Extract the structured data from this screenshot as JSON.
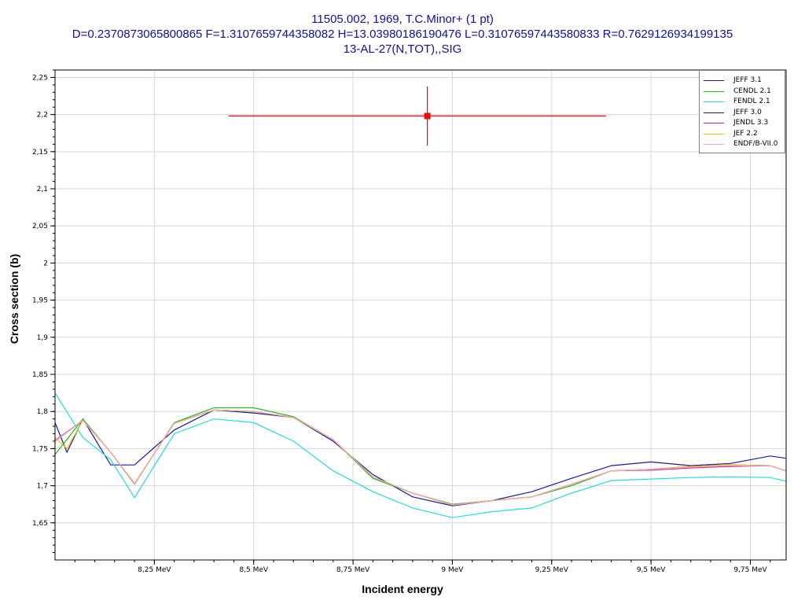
{
  "header": {
    "line1": "11505.002, 1969, T.C.Minor+ (1 pt)",
    "line2": "D=0.2370873065800865 F=1.3107659744358082 H=13.03980186190476 L=0.31076597443580833 R=0.7629126934199135",
    "line3": "13-AL-27(N,TOT),,SIG"
  },
  "chart_data": {
    "type": "line",
    "title": "13-AL-27(N,TOT),,SIG",
    "xlabel": "Incident energy",
    "ylabel": "Cross section (b)",
    "xlim": [
      8.0,
      9.84
    ],
    "ylim": [
      1.6,
      2.26
    ],
    "x_ticks": [
      8.25,
      8.5,
      8.75,
      9.0,
      9.25,
      9.5,
      9.75
    ],
    "x_tick_labels": [
      "8,25 MeV",
      "8,5 MeV",
      "8,75 MeV",
      "9 MeV",
      "9,25 MeV",
      "9,5 MeV",
      "9,75 MeV"
    ],
    "y_ticks": [
      1.65,
      1.7,
      1.75,
      1.8,
      1.85,
      1.9,
      1.95,
      2.0,
      2.05,
      2.1,
      2.15,
      2.2,
      2.25
    ],
    "y_tick_labels": [
      "1,65",
      "1,7",
      "1,75",
      "1,8",
      "1,85",
      "1,9",
      "1,95",
      "2",
      "2,05",
      "2,1",
      "2,15",
      "2,2",
      "2,25"
    ],
    "grid": true,
    "legend_position": "top-right",
    "experimental_point": {
      "x": 8.937,
      "y": 2.198,
      "x_err_low": 0.5,
      "x_err_high": 0.45,
      "y_err": 0.04,
      "color": "#ff0000"
    },
    "series": [
      {
        "name": "JEFF 3.1",
        "color": "#1a1aa0",
        "x": [
          8.0,
          8.03,
          8.07,
          8.14,
          8.2,
          8.3,
          8.4,
          8.5,
          8.6,
          8.7,
          8.8,
          8.9,
          9.0,
          9.1,
          9.2,
          9.3,
          9.4,
          9.5,
          9.6,
          9.7,
          9.8,
          9.84
        ],
        "y": [
          1.785,
          1.745,
          1.79,
          1.728,
          1.728,
          1.775,
          1.802,
          1.798,
          1.792,
          1.76,
          1.715,
          1.685,
          1.673,
          1.68,
          1.692,
          1.71,
          1.727,
          1.732,
          1.727,
          1.73,
          1.74,
          1.737
        ]
      },
      {
        "name": "CENDL 2.1",
        "color": "#22bb22",
        "x": [
          8.0,
          8.07,
          8.14,
          8.2,
          8.3,
          8.4,
          8.5,
          8.6,
          8.7,
          8.8,
          8.9,
          9.0,
          9.1,
          9.2,
          9.3,
          9.4,
          9.5,
          9.6,
          9.7,
          9.8,
          9.84
        ],
        "y": [
          1.742,
          1.79,
          1.745,
          1.702,
          1.785,
          1.805,
          1.805,
          1.793,
          1.762,
          1.71,
          1.69,
          1.675,
          1.68,
          1.685,
          1.7,
          1.72,
          1.722,
          1.725,
          1.728,
          1.727,
          1.72
        ]
      },
      {
        "name": "FENDL 2.1",
        "color": "#22dddd",
        "x": [
          8.0,
          8.07,
          8.14,
          8.2,
          8.3,
          8.4,
          8.5,
          8.6,
          8.7,
          8.8,
          8.9,
          9.0,
          9.1,
          9.2,
          9.3,
          9.4,
          9.5,
          9.6,
          9.7,
          9.8,
          9.84
        ],
        "y": [
          1.825,
          1.765,
          1.735,
          1.684,
          1.77,
          1.79,
          1.785,
          1.76,
          1.72,
          1.692,
          1.67,
          1.657,
          1.665,
          1.67,
          1.69,
          1.707,
          1.709,
          1.711,
          1.712,
          1.711,
          1.706
        ]
      },
      {
        "name": "JEFF 3.0",
        "color": "#202030",
        "x": [
          8.0,
          8.07,
          8.14,
          8.2,
          8.3,
          8.4,
          8.5,
          8.6,
          8.7,
          8.8,
          8.9,
          9.0,
          9.1,
          9.2,
          9.3,
          9.4,
          9.5,
          9.6,
          9.7,
          9.8,
          9.84
        ],
        "y": [
          1.76,
          1.788,
          1.745,
          1.703,
          1.784,
          1.802,
          1.8,
          1.792,
          1.762,
          1.712,
          1.69,
          1.674,
          1.68,
          1.685,
          1.702,
          1.72,
          1.722,
          1.726,
          1.728,
          1.727,
          1.72
        ]
      },
      {
        "name": "JENDL 3.3",
        "color": "#bb22bb",
        "x": [
          8.0,
          8.07,
          8.14,
          8.2,
          8.3,
          8.4,
          8.5,
          8.6,
          8.7,
          8.8,
          8.9,
          9.0,
          9.1,
          9.2,
          9.3,
          9.4,
          9.5,
          9.6,
          9.7,
          9.8,
          9.84
        ],
        "y": [
          1.761,
          1.788,
          1.745,
          1.703,
          1.784,
          1.802,
          1.8,
          1.792,
          1.762,
          1.712,
          1.69,
          1.674,
          1.68,
          1.685,
          1.702,
          1.72,
          1.721,
          1.724,
          1.726,
          1.727,
          1.72
        ]
      },
      {
        "name": "JEF 2.2",
        "color": "#e8c800",
        "x": [
          8.0,
          8.03,
          8.07,
          8.14,
          8.2,
          8.3,
          8.4,
          8.5,
          8.6,
          8.7,
          8.8,
          8.9,
          9.0,
          9.1,
          9.2,
          9.3,
          9.4,
          9.5,
          9.6,
          9.7,
          9.8,
          9.84
        ],
        "y": [
          1.765,
          1.75,
          1.788,
          1.745,
          1.703,
          1.784,
          1.802,
          1.8,
          1.792,
          1.762,
          1.712,
          1.69,
          1.674,
          1.68,
          1.685,
          1.702,
          1.72,
          1.722,
          1.726,
          1.728,
          1.727,
          1.72
        ]
      },
      {
        "name": "ENDF/B-VII.0",
        "color": "#ffaaaa",
        "x": [
          8.0,
          8.07,
          8.14,
          8.2,
          8.3,
          8.4,
          8.5,
          8.6,
          8.7,
          8.8,
          8.9,
          9.0,
          9.1,
          9.2,
          9.3,
          9.4,
          9.5,
          9.6,
          9.7,
          9.8,
          9.84
        ],
        "y": [
          1.76,
          1.788,
          1.745,
          1.703,
          1.784,
          1.802,
          1.8,
          1.792,
          1.762,
          1.712,
          1.69,
          1.674,
          1.68,
          1.685,
          1.702,
          1.72,
          1.722,
          1.725,
          1.727,
          1.727,
          1.72
        ]
      }
    ]
  }
}
